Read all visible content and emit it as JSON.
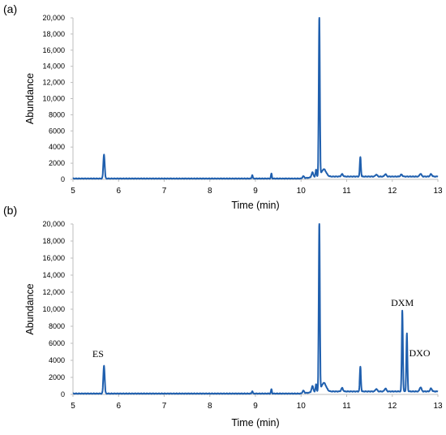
{
  "chart_data": [
    {
      "type": "line",
      "panel_label": "(a)",
      "xlabel": "Time (min)",
      "ylabel": "Abundance",
      "xlim": [
        5,
        13
      ],
      "ylim": [
        0,
        20000
      ],
      "xticks": [
        "5",
        "6",
        "7",
        "8",
        "9",
        "10",
        "11",
        "12",
        "13"
      ],
      "yticks": [
        "0",
        "2000",
        "4000",
        "6000",
        "8000",
        "10,000",
        "12,000",
        "14,000",
        "16,000",
        "18,000",
        "20,000"
      ],
      "grid": false,
      "color": "#1f5fae",
      "baseline": 100,
      "peaks": [
        {
          "x": 5.68,
          "y": 3000,
          "w": 0.015
        },
        {
          "x": 8.93,
          "y": 450,
          "w": 0.01
        },
        {
          "x": 9.35,
          "y": 600,
          "w": 0.01
        },
        {
          "x": 10.05,
          "y": 250,
          "w": 0.02
        },
        {
          "x": 10.25,
          "y": 600,
          "w": 0.02
        },
        {
          "x": 10.33,
          "y": 900,
          "w": 0.012
        },
        {
          "x": 10.4,
          "y": 20000,
          "w": 0.012
        },
        {
          "x": 10.5,
          "y": 900,
          "w": 0.05
        },
        {
          "x": 10.9,
          "y": 300,
          "w": 0.02
        },
        {
          "x": 11.3,
          "y": 2400,
          "w": 0.012
        },
        {
          "x": 11.65,
          "y": 250,
          "w": 0.02
        },
        {
          "x": 11.85,
          "y": 300,
          "w": 0.02
        },
        {
          "x": 12.2,
          "y": 250,
          "w": 0.02
        },
        {
          "x": 12.62,
          "y": 350,
          "w": 0.02
        },
        {
          "x": 12.85,
          "y": 300,
          "w": 0.02
        }
      ],
      "annotations": []
    },
    {
      "type": "line",
      "panel_label": "(b)",
      "xlabel": "Time (min)",
      "ylabel": "Abundance",
      "xlim": [
        5,
        13
      ],
      "ylim": [
        0,
        20000
      ],
      "xticks": [
        "5",
        "6",
        "7",
        "8",
        "9",
        "10",
        "11",
        "12",
        "13"
      ],
      "yticks": [
        "0",
        "2000",
        "4000",
        "6000",
        "8000",
        "10,000",
        "12,000",
        "14,000",
        "16,000",
        "18,000",
        "20,000"
      ],
      "grid": false,
      "color": "#1f5fae",
      "baseline": 100,
      "peaks": [
        {
          "x": 5.68,
          "y": 3300,
          "w": 0.015
        },
        {
          "x": 8.93,
          "y": 300,
          "w": 0.01
        },
        {
          "x": 9.35,
          "y": 500,
          "w": 0.01
        },
        {
          "x": 10.05,
          "y": 300,
          "w": 0.02
        },
        {
          "x": 10.25,
          "y": 700,
          "w": 0.02
        },
        {
          "x": 10.33,
          "y": 900,
          "w": 0.012
        },
        {
          "x": 10.4,
          "y": 20000,
          "w": 0.012
        },
        {
          "x": 10.5,
          "y": 1000,
          "w": 0.05
        },
        {
          "x": 10.9,
          "y": 400,
          "w": 0.02
        },
        {
          "x": 11.3,
          "y": 2900,
          "w": 0.012
        },
        {
          "x": 11.65,
          "y": 300,
          "w": 0.02
        },
        {
          "x": 11.85,
          "y": 350,
          "w": 0.02
        },
        {
          "x": 12.22,
          "y": 9500,
          "w": 0.012
        },
        {
          "x": 12.32,
          "y": 6800,
          "w": 0.012
        },
        {
          "x": 12.62,
          "y": 500,
          "w": 0.02
        },
        {
          "x": 12.85,
          "y": 350,
          "w": 0.02
        }
      ],
      "annotations": [
        {
          "text": "ES",
          "x": 5.55,
          "y": 4400
        },
        {
          "text": "DXM",
          "x": 12.22,
          "y": 10400
        },
        {
          "text": "DXO",
          "x": 12.6,
          "y": 4500
        }
      ]
    }
  ]
}
